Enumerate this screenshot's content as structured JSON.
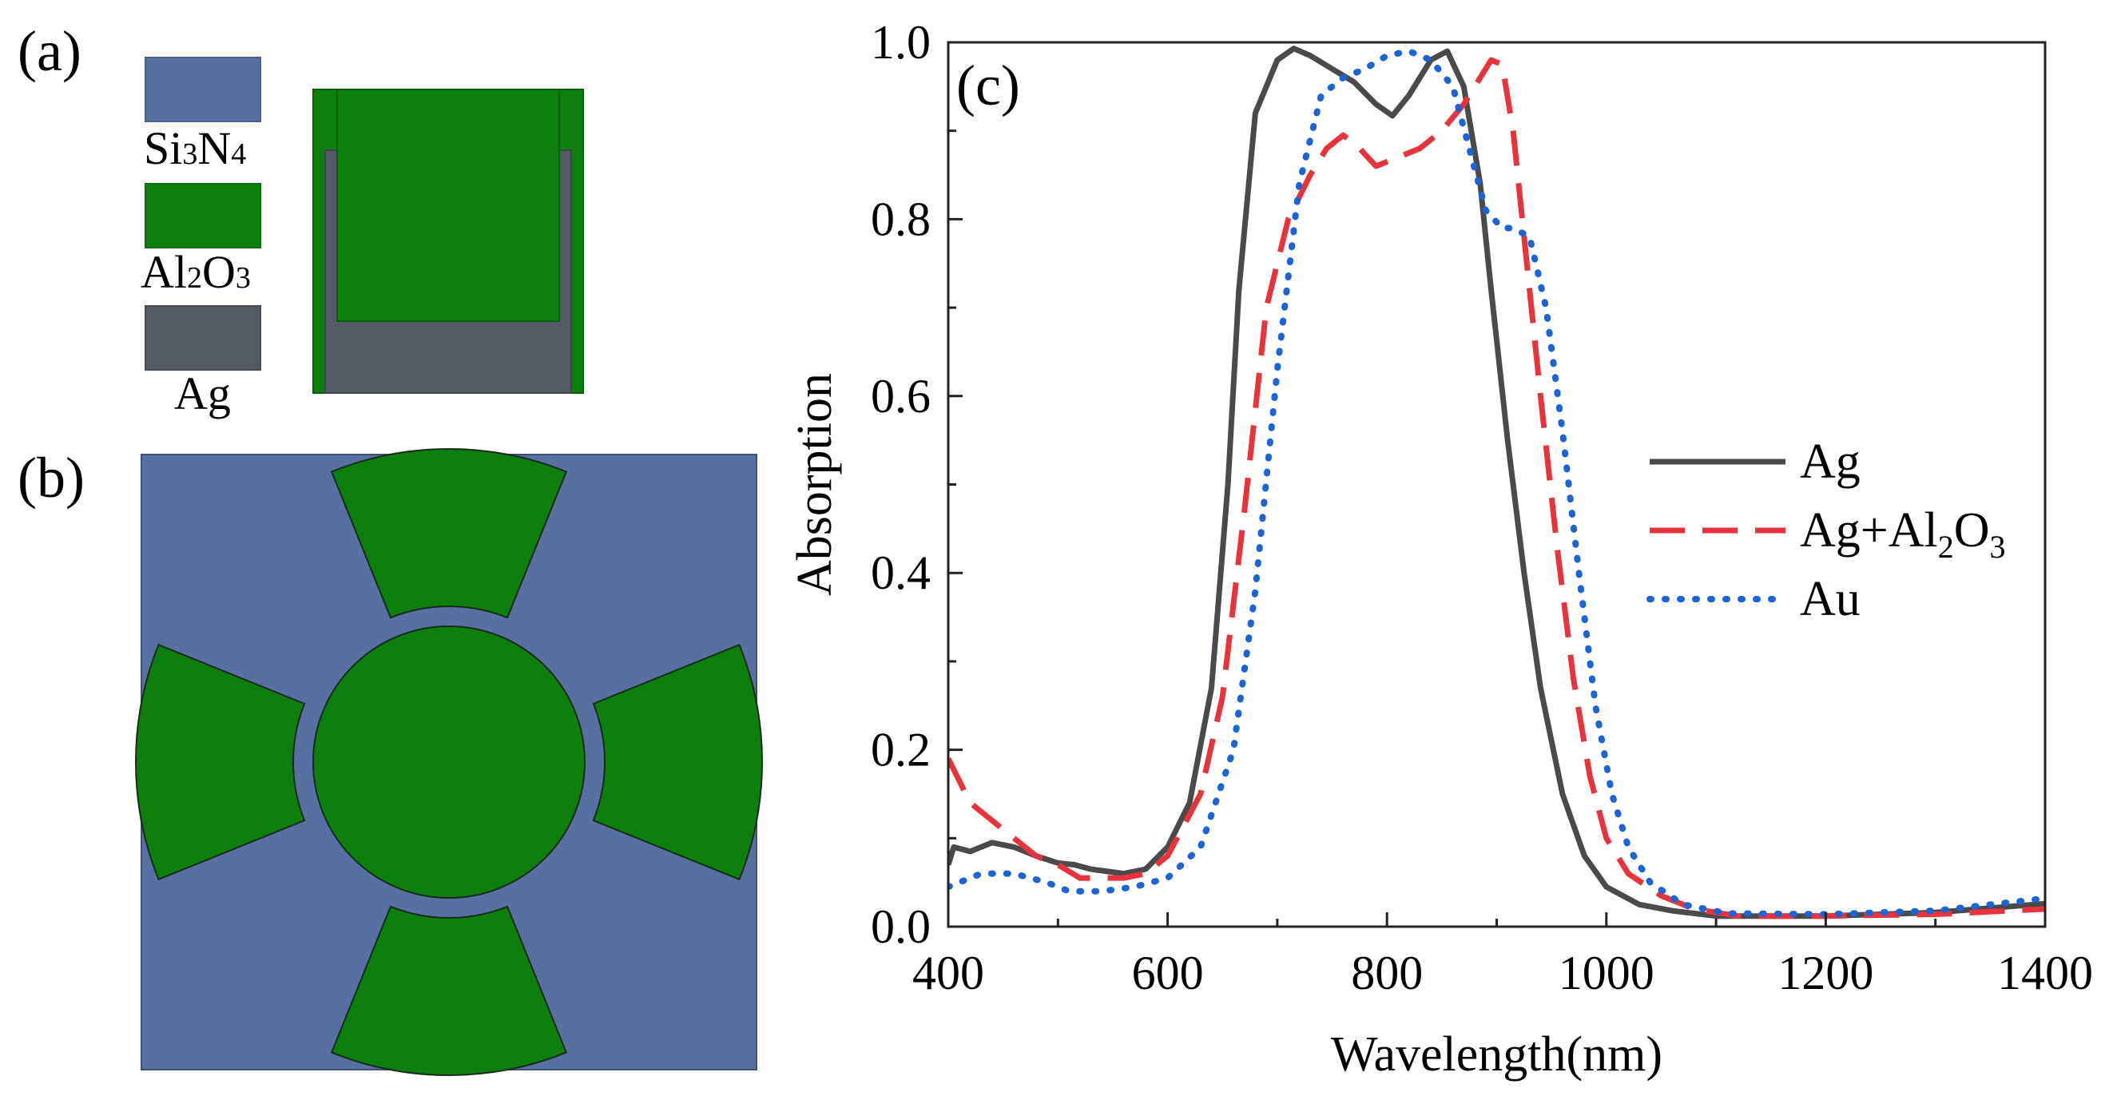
{
  "panels": {
    "a": {
      "label": "(a)"
    },
    "b": {
      "label": "(b)"
    },
    "c": {
      "label": "(c)"
    }
  },
  "materials": {
    "si3n4": {
      "base1": "Si",
      "sub1": "3",
      "base2": "N",
      "sub2": "4",
      "color": "#5670a2"
    },
    "al2o3": {
      "base1": "Al",
      "sub1": "2",
      "base2": "O",
      "sub2": "3",
      "color": "#0c7f0c"
    },
    "ag": {
      "name": "Ag",
      "color": "#545a63"
    }
  },
  "chart_data": {
    "type": "line",
    "xlabel": "Wavelength(nm)",
    "ylabel": "Absorption",
    "xlim": [
      400,
      1400
    ],
    "ylim": [
      0,
      1.0
    ],
    "xticks": [
      "400",
      "600",
      "800",
      "1000",
      "1200",
      "1400"
    ],
    "yticks": [
      "0.0",
      "0.2",
      "0.4",
      "0.6",
      "0.8",
      "1.0"
    ],
    "legend_position": "right",
    "series": [
      {
        "name": "Ag",
        "legend_base": "Ag",
        "color": "#4a4a4a",
        "style": "solid",
        "points": [
          [
            400,
            0.07
          ],
          [
            405,
            0.09
          ],
          [
            420,
            0.085
          ],
          [
            440,
            0.095
          ],
          [
            460,
            0.09
          ],
          [
            480,
            0.08
          ],
          [
            500,
            0.072
          ],
          [
            515,
            0.07
          ],
          [
            530,
            0.065
          ],
          [
            560,
            0.06
          ],
          [
            580,
            0.065
          ],
          [
            600,
            0.09
          ],
          [
            620,
            0.14
          ],
          [
            640,
            0.27
          ],
          [
            655,
            0.5
          ],
          [
            665,
            0.72
          ],
          [
            680,
            0.92
          ],
          [
            700,
            0.98
          ],
          [
            715,
            0.993
          ],
          [
            730,
            0.985
          ],
          [
            750,
            0.97
          ],
          [
            770,
            0.955
          ],
          [
            790,
            0.93
          ],
          [
            805,
            0.917
          ],
          [
            820,
            0.94
          ],
          [
            840,
            0.98
          ],
          [
            855,
            0.99
          ],
          [
            870,
            0.95
          ],
          [
            885,
            0.84
          ],
          [
            895,
            0.72
          ],
          [
            910,
            0.55
          ],
          [
            925,
            0.4
          ],
          [
            940,
            0.27
          ],
          [
            960,
            0.15
          ],
          [
            980,
            0.08
          ],
          [
            1000,
            0.045
          ],
          [
            1030,
            0.025
          ],
          [
            1060,
            0.018
          ],
          [
            1100,
            0.012
          ],
          [
            1200,
            0.012
          ],
          [
            1300,
            0.016
          ],
          [
            1400,
            0.026
          ]
        ]
      },
      {
        "name": "Ag+Al2O3",
        "legend_base": "Ag+Al",
        "legend_sub1": "2",
        "legend_mid": "O",
        "legend_sub2": "3",
        "color": "#e8333c",
        "style": "dashed",
        "points": [
          [
            400,
            0.19
          ],
          [
            420,
            0.14
          ],
          [
            440,
            0.12
          ],
          [
            460,
            0.1
          ],
          [
            480,
            0.08
          ],
          [
            500,
            0.07
          ],
          [
            520,
            0.055
          ],
          [
            540,
            0.055
          ],
          [
            560,
            0.055
          ],
          [
            580,
            0.06
          ],
          [
            600,
            0.08
          ],
          [
            630,
            0.15
          ],
          [
            650,
            0.26
          ],
          [
            670,
            0.47
          ],
          [
            690,
            0.7
          ],
          [
            710,
            0.8
          ],
          [
            730,
            0.85
          ],
          [
            745,
            0.88
          ],
          [
            760,
            0.895
          ],
          [
            775,
            0.88
          ],
          [
            790,
            0.86
          ],
          [
            810,
            0.87
          ],
          [
            830,
            0.88
          ],
          [
            850,
            0.9
          ],
          [
            870,
            0.93
          ],
          [
            885,
            0.96
          ],
          [
            895,
            0.98
          ],
          [
            905,
            0.975
          ],
          [
            915,
            0.9
          ],
          [
            925,
            0.78
          ],
          [
            940,
            0.6
          ],
          [
            955,
            0.43
          ],
          [
            970,
            0.28
          ],
          [
            985,
            0.17
          ],
          [
            1000,
            0.1
          ],
          [
            1020,
            0.06
          ],
          [
            1050,
            0.035
          ],
          [
            1080,
            0.02
          ],
          [
            1120,
            0.012
          ],
          [
            1200,
            0.012
          ],
          [
            1300,
            0.014
          ],
          [
            1400,
            0.02
          ]
        ]
      },
      {
        "name": "Au",
        "legend_base": "Au",
        "color": "#1b63d6",
        "style": "dotted",
        "points": [
          [
            400,
            0.045
          ],
          [
            430,
            0.06
          ],
          [
            460,
            0.06
          ],
          [
            490,
            0.05
          ],
          [
            510,
            0.04
          ],
          [
            540,
            0.04
          ],
          [
            570,
            0.045
          ],
          [
            600,
            0.055
          ],
          [
            630,
            0.09
          ],
          [
            660,
            0.2
          ],
          [
            680,
            0.38
          ],
          [
            700,
            0.63
          ],
          [
            720,
            0.84
          ],
          [
            740,
            0.94
          ],
          [
            760,
            0.96
          ],
          [
            780,
            0.97
          ],
          [
            800,
            0.985
          ],
          [
            820,
            0.99
          ],
          [
            840,
            0.98
          ],
          [
            860,
            0.95
          ],
          [
            875,
            0.88
          ],
          [
            890,
            0.81
          ],
          [
            905,
            0.79
          ],
          [
            915,
            0.79
          ],
          [
            930,
            0.78
          ],
          [
            945,
            0.7
          ],
          [
            960,
            0.56
          ],
          [
            975,
            0.4
          ],
          [
            990,
            0.25
          ],
          [
            1005,
            0.15
          ],
          [
            1020,
            0.09
          ],
          [
            1040,
            0.05
          ],
          [
            1070,
            0.025
          ],
          [
            1110,
            0.015
          ],
          [
            1200,
            0.014
          ],
          [
            1300,
            0.018
          ],
          [
            1400,
            0.032
          ]
        ]
      }
    ]
  }
}
